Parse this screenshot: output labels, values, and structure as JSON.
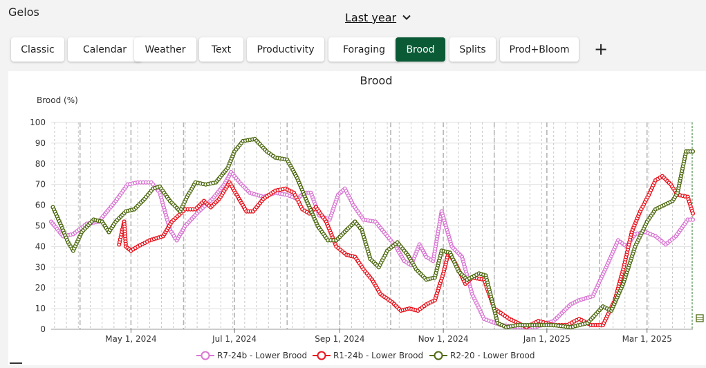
{
  "app": {
    "title": "Gelos"
  },
  "period": {
    "label": "Last year"
  },
  "tabs": [
    {
      "label": "Classic",
      "active": false
    },
    {
      "label": "Calendar",
      "active": false
    },
    {
      "label": "Weather",
      "active": false
    },
    {
      "label": "Text",
      "active": false
    },
    {
      "label": "Productivity",
      "active": false
    },
    {
      "label": "Foraging",
      "active": false
    },
    {
      "label": "Brood",
      "active": true
    },
    {
      "label": "Splits",
      "active": false
    },
    {
      "label": "Prod+Bloom",
      "active": false
    }
  ],
  "add_icon": "plus-icon",
  "colors": {
    "accent": "#0b5a36",
    "pink": "#d977d3",
    "red": "#e8141e",
    "green": "#4f6a12"
  },
  "chart_data": {
    "type": "line",
    "title": "Brood",
    "ylabel": "Brood (%)",
    "xlabel": "",
    "ylim": [
      0,
      100
    ],
    "yticks": [
      0,
      10,
      20,
      30,
      40,
      50,
      60,
      70,
      80,
      90,
      100
    ],
    "xlim": [
      "2024-03-15",
      "2025-03-28"
    ],
    "xticks": [
      {
        "date": "2024-05-01",
        "label": "May 1, 2024"
      },
      {
        "date": "2024-07-01",
        "label": "Jul 1, 2024"
      },
      {
        "date": "2024-09-01",
        "label": "Sep 1, 2024"
      },
      {
        "date": "2024-11-01",
        "label": "Nov 1, 2024"
      },
      {
        "date": "2025-01-01",
        "label": "Jan 1, 2025"
      },
      {
        "date": "2025-03-01",
        "label": "Mar 1, 2025"
      }
    ],
    "grid": true,
    "legend_position": "bottom",
    "series": [
      {
        "name": "R7-24b - Lower Brood",
        "color": "#d977d3",
        "points": [
          [
            "2024-03-15",
            52
          ],
          [
            "2024-03-22",
            45
          ],
          [
            "2024-03-28",
            46
          ],
          [
            "2024-04-05",
            51
          ],
          [
            "2024-04-12",
            52
          ],
          [
            "2024-04-22",
            62
          ],
          [
            "2024-04-29",
            70
          ],
          [
            "2024-05-05",
            71
          ],
          [
            "2024-05-13",
            71
          ],
          [
            "2024-05-18",
            66
          ],
          [
            "2024-05-24",
            48
          ],
          [
            "2024-05-28",
            43
          ],
          [
            "2024-06-02",
            50
          ],
          [
            "2024-06-10",
            57
          ],
          [
            "2024-06-18",
            63
          ],
          [
            "2024-06-25",
            70
          ],
          [
            "2024-06-29",
            76
          ],
          [
            "2024-07-04",
            71
          ],
          [
            "2024-07-10",
            66
          ],
          [
            "2024-07-18",
            64
          ],
          [
            "2024-07-25",
            66
          ],
          [
            "2024-08-01",
            65
          ],
          [
            "2024-08-07",
            63
          ],
          [
            "2024-08-11",
            66
          ],
          [
            "2024-08-15",
            66
          ],
          [
            "2024-08-20",
            55
          ],
          [
            "2024-08-26",
            53
          ],
          [
            "2024-08-31",
            65
          ],
          [
            "2024-09-04",
            68
          ],
          [
            "2024-09-09",
            60
          ],
          [
            "2024-09-15",
            53
          ],
          [
            "2024-09-22",
            52
          ],
          [
            "2024-09-28",
            46
          ],
          [
            "2024-10-04",
            40
          ],
          [
            "2024-10-09",
            33
          ],
          [
            "2024-10-13",
            31
          ],
          [
            "2024-10-18",
            41
          ],
          [
            "2024-10-22",
            35
          ],
          [
            "2024-10-26",
            33
          ],
          [
            "2024-10-31",
            57
          ],
          [
            "2024-11-06",
            40
          ],
          [
            "2024-11-12",
            35
          ],
          [
            "2024-11-18",
            17
          ],
          [
            "2024-11-25",
            5
          ],
          [
            "2024-12-05",
            2
          ],
          [
            "2024-12-15",
            1
          ],
          [
            "2024-12-25",
            1
          ],
          [
            "2025-01-05",
            4
          ],
          [
            "2025-01-15",
            12
          ],
          [
            "2025-01-20",
            14
          ],
          [
            "2025-01-28",
            16
          ],
          [
            "2025-02-05",
            30
          ],
          [
            "2025-02-12",
            43
          ],
          [
            "2025-02-17",
            40
          ],
          [
            "2025-02-22",
            46
          ],
          [
            "2025-02-28",
            47
          ],
          [
            "2025-03-06",
            45
          ],
          [
            "2025-03-12",
            41
          ],
          [
            "2025-03-18",
            45
          ],
          [
            "2025-03-25",
            53
          ],
          [
            "2025-03-28",
            53
          ]
        ]
      },
      {
        "name": "R1-24b - Lower Brood",
        "color": "#e8141e",
        "points": [
          [
            "2024-04-24",
            41
          ],
          [
            "2024-04-27",
            52
          ],
          [
            "2024-04-28",
            40
          ],
          [
            "2024-05-01",
            38
          ],
          [
            "2024-05-05",
            40
          ],
          [
            "2024-05-12",
            43
          ],
          [
            "2024-05-20",
            45
          ],
          [
            "2024-05-25",
            52
          ],
          [
            "2024-06-02",
            58
          ],
          [
            "2024-06-08",
            58
          ],
          [
            "2024-06-13",
            62
          ],
          [
            "2024-06-17",
            59
          ],
          [
            "2024-06-22",
            63
          ],
          [
            "2024-06-28",
            71
          ],
          [
            "2024-07-03",
            64
          ],
          [
            "2024-07-08",
            57
          ],
          [
            "2024-07-12",
            57
          ],
          [
            "2024-07-18",
            63
          ],
          [
            "2024-07-25",
            67
          ],
          [
            "2024-07-31",
            68
          ],
          [
            "2024-08-05",
            66
          ],
          [
            "2024-08-10",
            58
          ],
          [
            "2024-08-14",
            56
          ],
          [
            "2024-08-18",
            59
          ],
          [
            "2024-08-24",
            52
          ],
          [
            "2024-08-30",
            40
          ],
          [
            "2024-09-05",
            36
          ],
          [
            "2024-09-10",
            35
          ],
          [
            "2024-09-15",
            29
          ],
          [
            "2024-09-20",
            24
          ],
          [
            "2024-09-25",
            17
          ],
          [
            "2024-10-02",
            13
          ],
          [
            "2024-10-07",
            9
          ],
          [
            "2024-10-12",
            10
          ],
          [
            "2024-10-17",
            9
          ],
          [
            "2024-10-22",
            12
          ],
          [
            "2024-10-27",
            14
          ],
          [
            "2024-11-01",
            27
          ],
          [
            "2024-11-04",
            37
          ],
          [
            "2024-11-08",
            32
          ],
          [
            "2024-11-14",
            22
          ],
          [
            "2024-11-18",
            25
          ],
          [
            "2024-11-25",
            24
          ],
          [
            "2024-12-01",
            10
          ],
          [
            "2024-12-10",
            5
          ],
          [
            "2024-12-20",
            1
          ],
          [
            "2024-12-27",
            4
          ],
          [
            "2025-01-05",
            2
          ],
          [
            "2025-01-13",
            2
          ],
          [
            "2025-01-20",
            5
          ],
          [
            "2025-01-27",
            2
          ],
          [
            "2025-02-03",
            2
          ],
          [
            "2025-02-10",
            14
          ],
          [
            "2025-02-15",
            29
          ],
          [
            "2025-02-20",
            47
          ],
          [
            "2025-02-25",
            57
          ],
          [
            "2025-03-02",
            65
          ],
          [
            "2025-03-06",
            72
          ],
          [
            "2025-03-10",
            74
          ],
          [
            "2025-03-15",
            70
          ],
          [
            "2025-03-19",
            65
          ],
          [
            "2025-03-25",
            64
          ],
          [
            "2025-03-28",
            56
          ]
        ]
      },
      {
        "name": "R2-20 - Lower Brood",
        "color": "#4f6a12",
        "points": [
          [
            "2024-03-16",
            59
          ],
          [
            "2024-03-21",
            50
          ],
          [
            "2024-03-25",
            42
          ],
          [
            "2024-03-28",
            38
          ],
          [
            "2024-04-02",
            47
          ],
          [
            "2024-04-09",
            53
          ],
          [
            "2024-04-14",
            52
          ],
          [
            "2024-04-18",
            47
          ],
          [
            "2024-04-22",
            52
          ],
          [
            "2024-04-28",
            57
          ],
          [
            "2024-05-03",
            58
          ],
          [
            "2024-05-09",
            63
          ],
          [
            "2024-05-14",
            68
          ],
          [
            "2024-05-18",
            69
          ],
          [
            "2024-05-24",
            62
          ],
          [
            "2024-05-30",
            57
          ],
          [
            "2024-06-03",
            64
          ],
          [
            "2024-06-08",
            71
          ],
          [
            "2024-06-14",
            70
          ],
          [
            "2024-06-20",
            71
          ],
          [
            "2024-06-27",
            78
          ],
          [
            "2024-07-01",
            86
          ],
          [
            "2024-07-06",
            91
          ],
          [
            "2024-07-13",
            92
          ],
          [
            "2024-07-20",
            86
          ],
          [
            "2024-07-25",
            83
          ],
          [
            "2024-08-01",
            82
          ],
          [
            "2024-08-07",
            73
          ],
          [
            "2024-08-12",
            63
          ],
          [
            "2024-08-19",
            50
          ],
          [
            "2024-08-25",
            43
          ],
          [
            "2024-08-30",
            43
          ],
          [
            "2024-09-05",
            48
          ],
          [
            "2024-09-10",
            52
          ],
          [
            "2024-09-14",
            48
          ],
          [
            "2024-09-19",
            34
          ],
          [
            "2024-09-24",
            30
          ],
          [
            "2024-09-29",
            38
          ],
          [
            "2024-10-05",
            42
          ],
          [
            "2024-10-11",
            36
          ],
          [
            "2024-10-16",
            29
          ],
          [
            "2024-10-22",
            24
          ],
          [
            "2024-10-27",
            25
          ],
          [
            "2024-10-31",
            38
          ],
          [
            "2024-11-05",
            37
          ],
          [
            "2024-11-10",
            28
          ],
          [
            "2024-11-15",
            24
          ],
          [
            "2024-11-22",
            27
          ],
          [
            "2024-11-26",
            26
          ],
          [
            "2024-12-03",
            3
          ],
          [
            "2024-12-08",
            1
          ],
          [
            "2024-12-15",
            2
          ],
          [
            "2024-12-25",
            2
          ],
          [
            "2025-01-05",
            2
          ],
          [
            "2025-01-15",
            1
          ],
          [
            "2025-01-25",
            3
          ],
          [
            "2025-02-03",
            11
          ],
          [
            "2025-02-08",
            9
          ],
          [
            "2025-02-15",
            22
          ],
          [
            "2025-02-22",
            40
          ],
          [
            "2025-03-01",
            52
          ],
          [
            "2025-03-06",
            58
          ],
          [
            "2025-03-11",
            60
          ],
          [
            "2025-03-16",
            62
          ],
          [
            "2025-03-19",
            66
          ],
          [
            "2025-03-24",
            86
          ],
          [
            "2025-03-28",
            86
          ]
        ]
      }
    ]
  }
}
